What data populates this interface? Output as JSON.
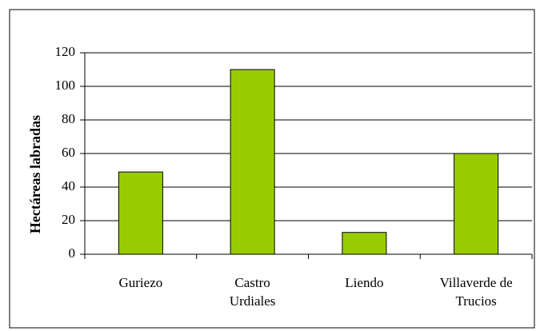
{
  "chart_data": {
    "type": "bar",
    "ylabel": "Hectáreas labradas",
    "categories": [
      "Guriezo",
      "Castro Urdiales",
      "Liendo",
      "Villaverde de Trucios"
    ],
    "values": [
      49,
      110,
      13,
      60
    ],
    "color": "#99cc00",
    "ylim": [
      0,
      120
    ],
    "yticks": [
      0,
      20,
      40,
      60,
      80,
      100,
      120
    ],
    "grid": true
  }
}
